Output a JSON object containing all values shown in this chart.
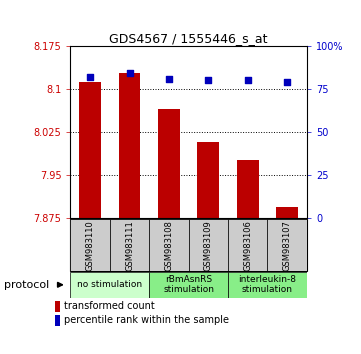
{
  "title": "GDS4567 / 1555446_s_at",
  "samples": [
    "GSM983110",
    "GSM983111",
    "GSM983108",
    "GSM983109",
    "GSM983106",
    "GSM983107"
  ],
  "bar_values": [
    8.112,
    8.128,
    8.065,
    8.007,
    7.975,
    7.893
  ],
  "percentile_values": [
    82,
    84,
    81,
    80,
    80,
    79
  ],
  "bar_bottom": 7.875,
  "ylim_left": [
    7.875,
    8.175
  ],
  "ylim_right": [
    0,
    100
  ],
  "yticks_left": [
    7.875,
    7.95,
    8.025,
    8.1,
    8.175
  ],
  "yticks_right": [
    0,
    25,
    50,
    75,
    100
  ],
  "ytick_labels_left": [
    "7.875",
    "7.95",
    "8.025",
    "8.1",
    "8.175"
  ],
  "ytick_labels_right": [
    "0",
    "25",
    "50",
    "75",
    "100%"
  ],
  "gridlines": [
    7.95,
    8.025,
    8.1
  ],
  "bar_color": "#bb0000",
  "dot_color": "#0000bb",
  "groups": [
    {
      "label": "no stimulation",
      "start": 0,
      "end": 2,
      "color": "#ccffcc"
    },
    {
      "label": "rBmAsnRS\nstimulation",
      "start": 2,
      "end": 4,
      "color": "#88ee88"
    },
    {
      "label": "interleukin-8\nstimulation",
      "start": 4,
      "end": 6,
      "color": "#88ee88"
    }
  ],
  "protocol_label": "protocol",
  "legend_bar_label": "transformed count",
  "legend_dot_label": "percentile rank within the sample",
  "left_tick_color": "#cc0000",
  "right_tick_color": "#0000cc",
  "sample_box_color": "#cccccc"
}
